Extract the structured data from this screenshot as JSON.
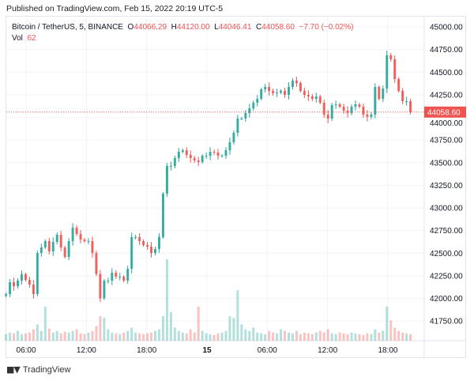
{
  "header": {
    "published": "Published on TradingView.com, Feb 15, 2022 20:19 UTC-5"
  },
  "legend": {
    "symbol": "Bitcoin / TetherUS, 5, BINANCE",
    "open_label": "O",
    "open": "44066.29",
    "high_label": "H",
    "high": "44120.00",
    "low_label": "L",
    "low": "44046.41",
    "close_label": "C",
    "close": "44058.60",
    "change": "−7.70 (−0.02%)",
    "vol_label": "Vol",
    "vol": "62"
  },
  "footer": {
    "brand": "TradingView",
    "logo_text": "TV"
  },
  "colors": {
    "up": "#26a69a",
    "down": "#ef5350",
    "grid": "#f0f3fa",
    "price_tag": "#ef5350"
  },
  "chart_data": {
    "type": "candlestick",
    "symbol": "BTCUSDT",
    "timeframe_minutes": 5,
    "start": "2022-02-14 04:00",
    "end": "2022-02-15 20:15",
    "ylim": [
      41600,
      45100
    ],
    "grid": true,
    "y_ticks": [
      "45000.00",
      "44750.00",
      "44500.00",
      "44250.00",
      "44000.00",
      "43750.00",
      "43500.00",
      "43250.00",
      "43000.00",
      "42750.00",
      "42500.00",
      "42250.00",
      "42000.00",
      "41750.00"
    ],
    "x_ticks": [
      {
        "label": "06:00",
        "hours_from_feb15": -18,
        "bold": false
      },
      {
        "label": "12:00",
        "hours_from_feb15": -12,
        "bold": false
      },
      {
        "label": "18:00",
        "hours_from_feb15": -6,
        "bold": false
      },
      {
        "label": "15",
        "hours_from_feb15": 0,
        "bold": true
      },
      {
        "label": "06:00",
        "hours_from_feb15": 6,
        "bold": false
      },
      {
        "label": "12:00",
        "hours_from_feb15": 12,
        "bold": false
      },
      {
        "label": "18:00",
        "hours_from_feb15": 18,
        "bold": false
      }
    ],
    "last_price": 44058.6,
    "last_price_label": "44058.60",
    "closes": [
      42048,
      42179,
      42135,
      42196,
      42267,
      42205,
      42153,
      42048,
      42502,
      42563,
      42633,
      42519,
      42624,
      42703,
      42563,
      42458,
      42633,
      42782,
      42712,
      42650,
      42633,
      42633,
      42502,
      42270,
      42000,
      42196,
      42196,
      42284,
      42240,
      42240,
      42196,
      42327,
      42677,
      42677,
      42633,
      42589,
      42572,
      42502,
      42546,
      42677,
      43157,
      43463,
      43463,
      43550,
      43620,
      43637,
      43585,
      43550,
      43524,
      43506,
      43576,
      43576,
      43620,
      43611,
      43576,
      43576,
      43637,
      43725,
      43830,
      43987,
      43987,
      44048,
      44100,
      44162,
      44205,
      44310,
      44336,
      44292,
      44266,
      44275,
      44292,
      44249,
      44336,
      44406,
      44380,
      44292,
      44249,
      44231,
      44205,
      44231,
      44162,
      44031,
      43987,
      44135,
      44144,
      44118,
      44074,
      44048,
      44118,
      44144,
      44118,
      44031,
      44005,
      44031,
      44336,
      44205,
      44318,
      44686,
      44642,
      44424,
      44292,
      44179,
      44179,
      44058.6
    ],
    "volume_pct_of_max": [
      8,
      10,
      9,
      12,
      8,
      9,
      10,
      14,
      20,
      12,
      42,
      15,
      10,
      12,
      9,
      11,
      10,
      12,
      14,
      9,
      8,
      10,
      12,
      18,
      30,
      28,
      14,
      10,
      9,
      8,
      10,
      12,
      16,
      10,
      9,
      8,
      9,
      10,
      12,
      14,
      30,
      100,
      35,
      16,
      12,
      10,
      9,
      14,
      10,
      42,
      12,
      9,
      8,
      7,
      9,
      10,
      12,
      30,
      28,
      62,
      20,
      14,
      12,
      16,
      10,
      9,
      8,
      12,
      10,
      9,
      14,
      12,
      10,
      9,
      12,
      8,
      10,
      9,
      8,
      10,
      12,
      10,
      14,
      9,
      8,
      10,
      9,
      8,
      10,
      9,
      8,
      7,
      9,
      8,
      14,
      10,
      12,
      42,
      25,
      16,
      12,
      10,
      9,
      8
    ]
  }
}
